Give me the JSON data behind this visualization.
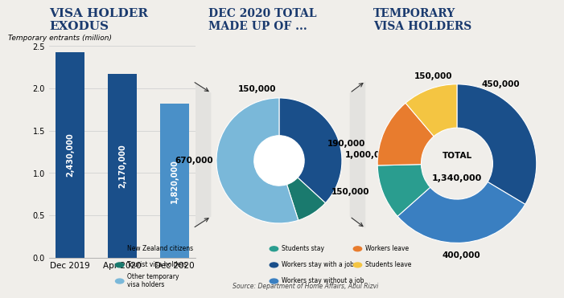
{
  "bg_color": "#f0eeea",
  "title1": "VISA HOLDER\nEXODUS",
  "title2": "DEC 2020 TOTAL\nMADE UP OF ...",
  "title3": "TEMPORARY\nVISA HOLDERS",
  "bar_categories": [
    "Dec 2019",
    "Apr 2020",
    "Dec 2020"
  ],
  "bar_values": [
    2.43,
    2.17,
    1.82
  ],
  "bar_labels": [
    "2,430,000",
    "2,170,000",
    "1,820,000"
  ],
  "bar_colors": [
    "#1a4f8a",
    "#1a4f8a",
    "#4a90c8"
  ],
  "bar_ylabel": "Temporary entrants (million)",
  "bar_ylim": [
    0,
    2.5
  ],
  "bar_yticks": [
    0,
    0.5,
    1.0,
    1.5,
    2.0,
    2.5
  ],
  "pie1_values": [
    670000,
    150000,
    1000000
  ],
  "pie1_colors": [
    "#1a4f8a",
    "#1a7a6e",
    "#7ab8d9"
  ],
  "pie1_labels": [
    "670,000",
    "150,000",
    "1,000,000"
  ],
  "pie1_legend": [
    "New Zealand citizens",
    "Tourist visa holders",
    "Other temporary\nvisa holders"
  ],
  "pie2_values": [
    450000,
    400000,
    150000,
    190000,
    150000
  ],
  "pie2_colors": [
    "#1a4f8a",
    "#3a7fc1",
    "#2a9d8f",
    "#e87c2e",
    "#f4c542"
  ],
  "pie2_labels": [
    "450,000",
    "400,000",
    "150,000",
    "190,000",
    "150,000"
  ],
  "pie2_legend": [
    "Students stay",
    "Workers stay with a job",
    "Workers stay without a job",
    "Workers leave",
    "Students leave"
  ],
  "pie2_total": "TOTAL\n1,340,000",
  "source": "Source: Department of Home Affairs, Abul Rizvi",
  "title_color": "#1a3a6e",
  "label_color_dark": "#1a3a6e",
  "arrow_color": "#333333"
}
